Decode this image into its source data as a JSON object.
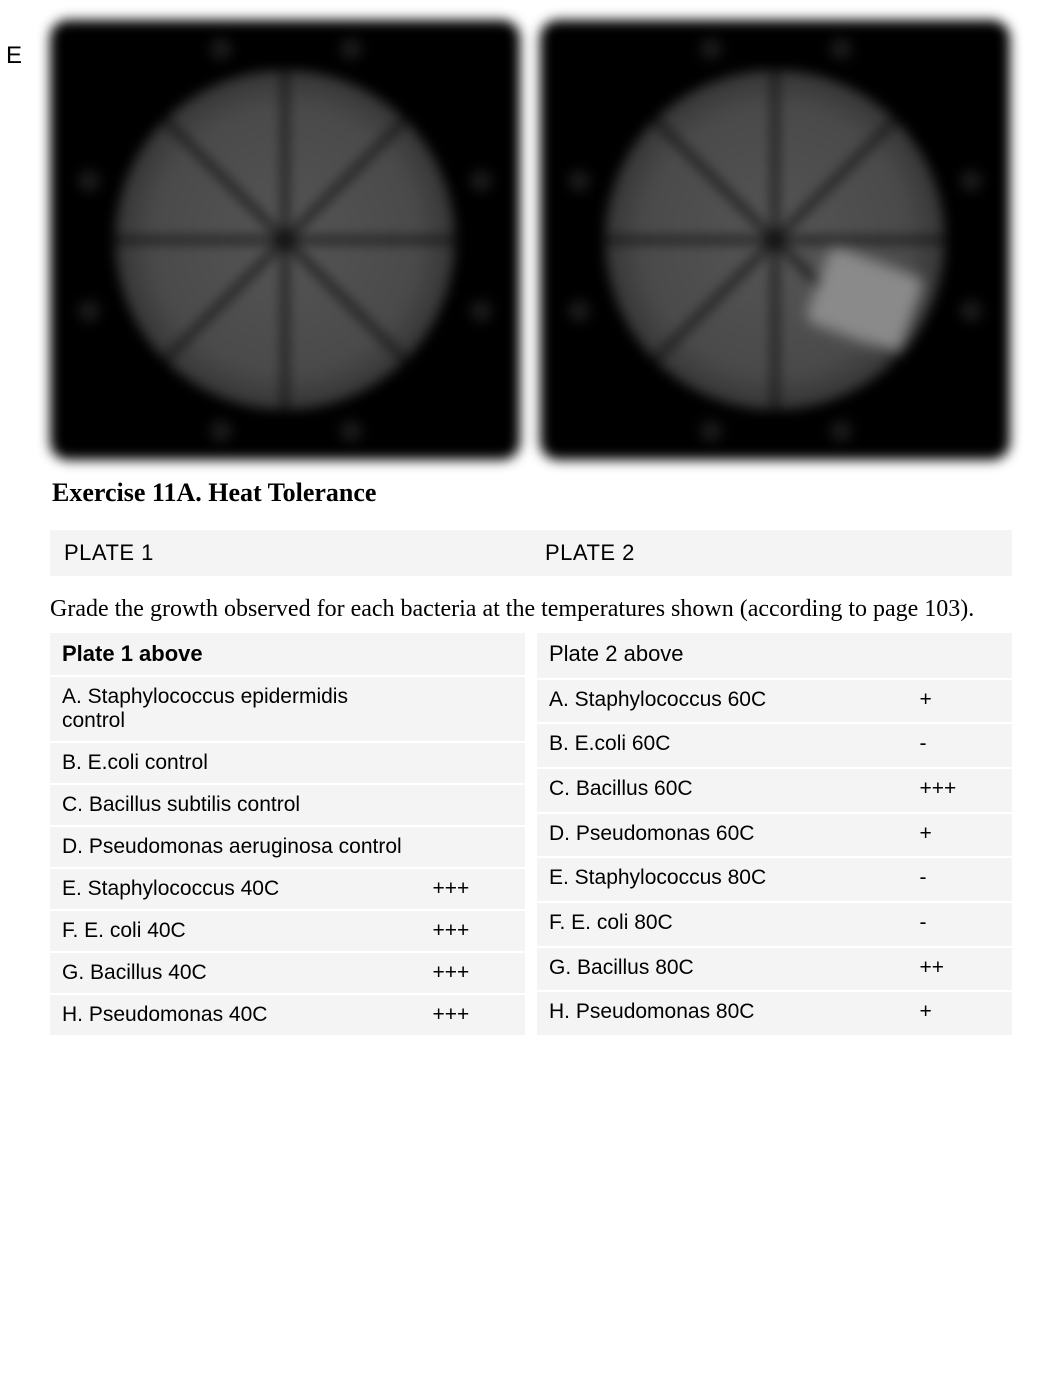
{
  "topletter": "E",
  "title": "Exercise 11A. Heat Tolerance",
  "plate_labels": {
    "left": "PLATE 1",
    "right": "PLATE 2"
  },
  "instruction": "Grade the growth observed for each bacteria at the temperatures shown (according to page 103).",
  "plate_image": {
    "background": "#000000",
    "dish_fill_center": "#555555",
    "dish_fill_outer": "#222222",
    "segments": 8,
    "labels": [
      "A",
      "B",
      "C",
      "D",
      "E",
      "F",
      "G",
      "H"
    ]
  },
  "table1": {
    "header": "Plate 1 above",
    "header_bold": true,
    "rows": [
      {
        "label": "A. Staphylococcus epidermidis control",
        "val": ""
      },
      {
        "label": "B. E.coli control",
        "val": ""
      },
      {
        "label": "C. Bacillus subtilis control",
        "val": ""
      },
      {
        "label": "D. Pseudomonas aeruginosa control",
        "val": ""
      },
      {
        "label": "E. Staphylococcus 40C",
        "val": "+++"
      },
      {
        "label": "F. E. coli 40C",
        "val": "+++"
      },
      {
        "label": "G. Bacillus 40C",
        "val": "+++"
      },
      {
        "label": "H. Pseudomonas 40C",
        "val": "+++"
      }
    ]
  },
  "table2": {
    "header": "Plate 2 above",
    "header_bold": false,
    "rows": [
      {
        "label": "A. Staphylococcus 60C",
        "val": "+"
      },
      {
        "label": "B. E.coli 60C",
        "val": "-"
      },
      {
        "label": "C. Bacillus 60C",
        "val": "+++"
      },
      {
        "label": "D. Pseudomonas 60C",
        "val": "+"
      },
      {
        "label": "E. Staphylococcus 80C",
        "val": "-"
      },
      {
        "label": "F. E. coli 80C",
        "val": "-"
      },
      {
        "label": "G. Bacillus 80C",
        "val": "++"
      },
      {
        "label": "H. Pseudomonas 80C",
        "val": "+"
      }
    ]
  },
  "style": {
    "row_bg": "#f4f4f4",
    "body_font": "Helvetica, Arial, sans-serif",
    "title_font": "Georgia, 'Times New Roman', serif",
    "title_size_pt": 20,
    "row_font_size_pt": 16,
    "label_font_size_pt": 17,
    "instruction_size_pt": 18
  }
}
